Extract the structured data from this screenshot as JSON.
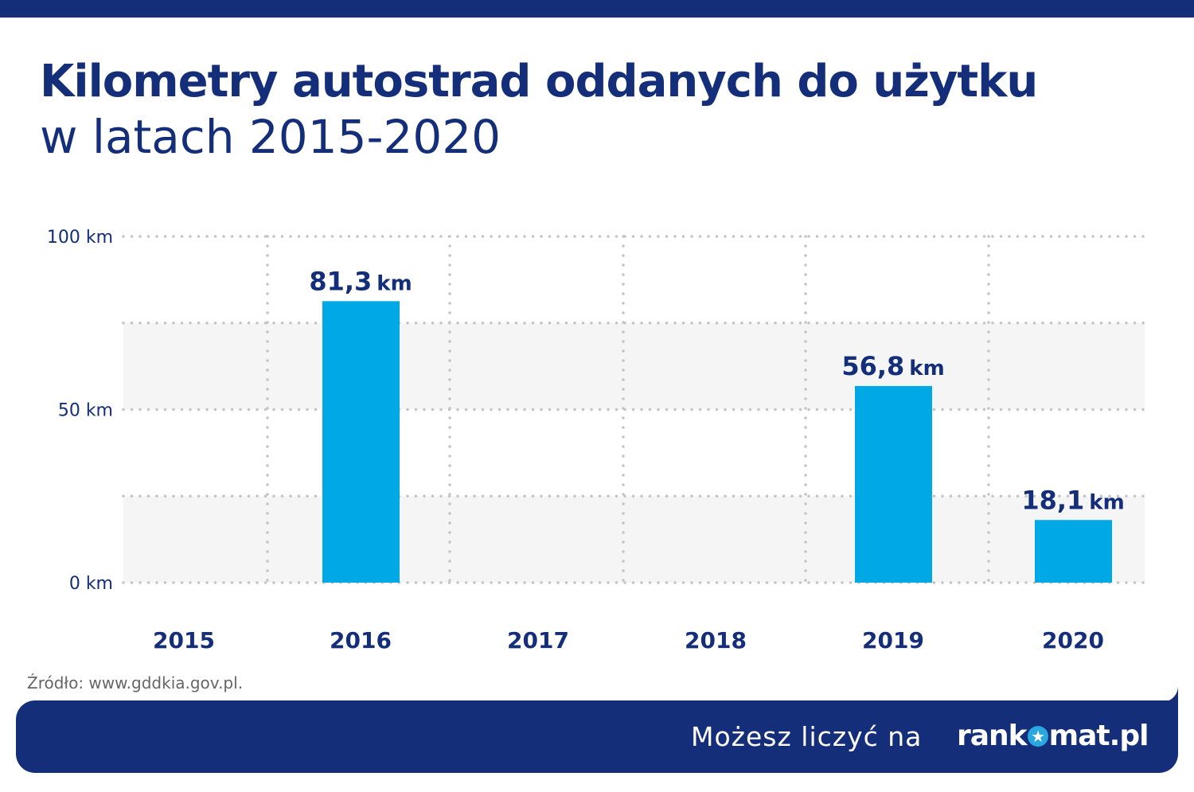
{
  "header": {
    "title": "Kilometry autostrad oddanych do użytku",
    "subtitle": "w latach 2015-2020"
  },
  "chart_data": {
    "type": "bar",
    "title": "Kilometry autostrad oddanych do użytku w latach 2015-2020",
    "categories": [
      "2015",
      "2016",
      "2017",
      "2018",
      "2019",
      "2020"
    ],
    "values": [
      null,
      81.3,
      null,
      null,
      56.8,
      18.1
    ],
    "data_labels": [
      "",
      "81,3",
      "",
      "",
      "56,8",
      "18,1"
    ],
    "data_label_unit": "km",
    "ylim": [
      0,
      100
    ],
    "yticks": [
      0,
      50,
      100
    ],
    "ytick_labels": [
      "0 km",
      "50 km",
      "100 km"
    ],
    "grid": true,
    "grid_style": "dotted",
    "bar_color": "#00a8e6",
    "label_color": "#142e7a"
  },
  "source": "Źródło: www.gddkia.gov.pl.",
  "footer": {
    "tagline": "Możesz liczyć na",
    "logo_text_left": "rank",
    "logo_text_right": "mat.pl",
    "logo_star": "★"
  },
  "colors": {
    "brand_navy": "#142e7a",
    "bar_blue": "#00a8e6"
  }
}
